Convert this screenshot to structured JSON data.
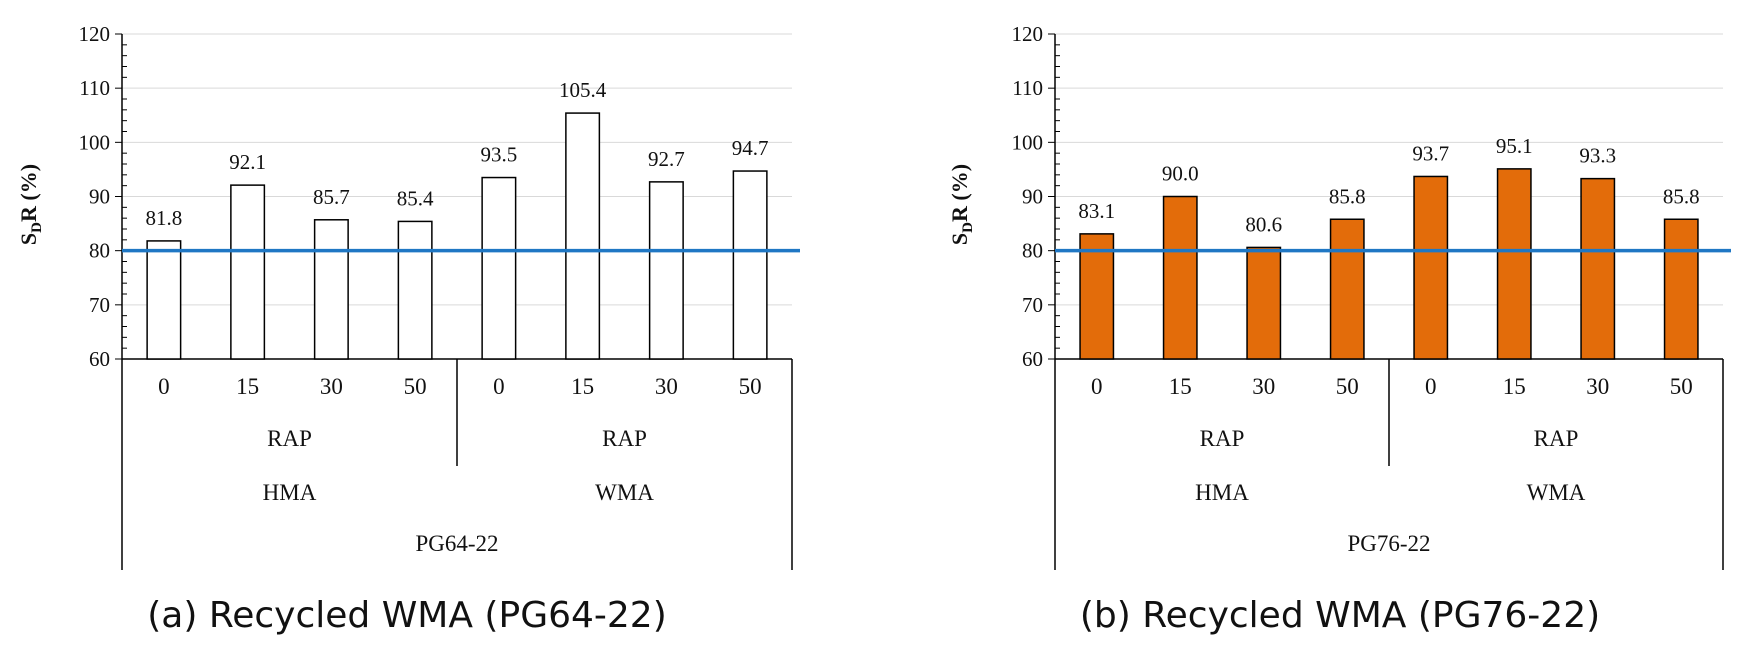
{
  "reference_line": {
    "value": 80,
    "color": "#1f77c4"
  },
  "chart_data": [
    {
      "type": "bar",
      "caption": "(a) Recycled WMA (PG64-22)",
      "ylabel_main": "S",
      "ylabel_sub": "D",
      "ylabel_rest": "R (%)",
      "ylim": [
        60,
        120
      ],
      "yticks": [
        "60",
        "70",
        "80",
        "90",
        "100",
        "110",
        "120"
      ],
      "categories": [
        "0",
        "15",
        "30",
        "50",
        "0",
        "15",
        "30",
        "50"
      ],
      "values": [
        81.8,
        92.1,
        85.7,
        85.4,
        93.5,
        105.4,
        92.7,
        94.7
      ],
      "value_labels": [
        "81.8",
        "92.1",
        "85.7",
        "85.4",
        "93.5",
        "105.4",
        "92.7",
        "94.7"
      ],
      "groups": [
        {
          "sub": "RAP",
          "name": "HMA"
        },
        {
          "sub": "RAP",
          "name": "WMA"
        }
      ],
      "binder": "PG64-22",
      "bar_fill": "#ffffff",
      "bar_stroke": "#000000"
    },
    {
      "type": "bar",
      "caption": "(b) Recycled WMA (PG76-22)",
      "ylabel_main": "S",
      "ylabel_sub": "D",
      "ylabel_rest": "R (%)",
      "ylim": [
        60,
        120
      ],
      "yticks": [
        "60",
        "70",
        "80",
        "90",
        "100",
        "110",
        "120"
      ],
      "categories": [
        "0",
        "15",
        "30",
        "50",
        "0",
        "15",
        "30",
        "50"
      ],
      "values": [
        83.1,
        90.0,
        80.6,
        85.8,
        93.7,
        95.1,
        93.3,
        85.8
      ],
      "value_labels": [
        "83.1",
        "90.0",
        "80.6",
        "85.8",
        "93.7",
        "95.1",
        "93.3",
        "85.8"
      ],
      "groups": [
        {
          "sub": "RAP",
          "name": "HMA"
        },
        {
          "sub": "RAP",
          "name": "WMA"
        }
      ],
      "binder": "PG76-22",
      "bar_fill": "#e36c0a",
      "bar_stroke": "#000000"
    }
  ]
}
